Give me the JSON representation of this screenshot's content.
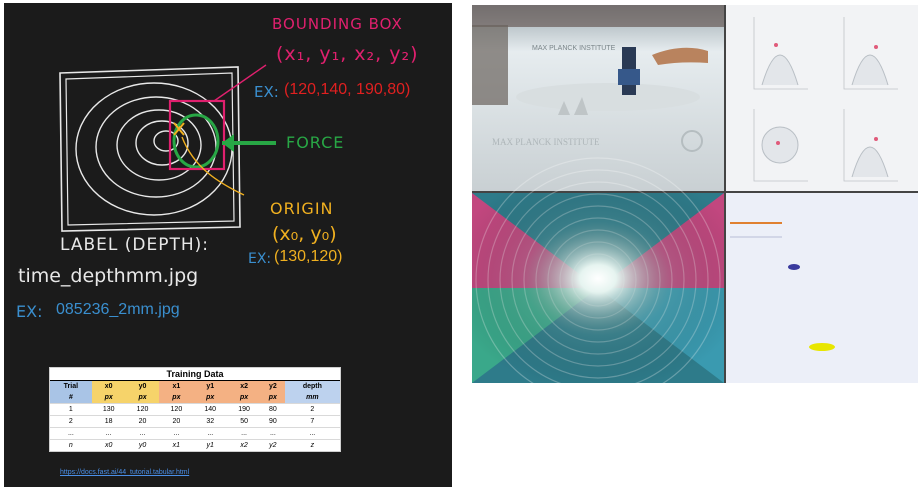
{
  "annotations": {
    "bbox_title": "BOUNDING BOX",
    "bbox_tuple": "(x₁, y₁, x₂, y₂)",
    "bbox_example_prefix": "EX:",
    "bbox_example_value": "(120,140, 190,80)",
    "force_label": "FORCE",
    "origin_title": "ORIGIN",
    "origin_tuple": "(x₀, y₀)",
    "origin_example_prefix": "EX:",
    "origin_example_value": "(130,120)",
    "label_heading": "LABEL (DEPTH):",
    "label_format": "time_depthmm.jpg",
    "file_example_prefix": "EX:",
    "file_example_value": "085236_2mm.jpg",
    "url": "https://docs.fast.ai/44_tutorial.tabular.html"
  },
  "training_table": {
    "title": "Training Data",
    "headers": [
      "Trial",
      "x0",
      "y0",
      "x1",
      "y1",
      "x2",
      "y2",
      "depth"
    ],
    "units": [
      "#",
      "px",
      "px",
      "px",
      "px",
      "px",
      "px",
      "mm"
    ],
    "rows": [
      [
        "1",
        "130",
        "120",
        "120",
        "140",
        "190",
        "80",
        "2"
      ],
      [
        "2",
        "18",
        "20",
        "20",
        "32",
        "50",
        "90",
        "7"
      ],
      [
        "...",
        "...",
        "...",
        "...",
        "...",
        "...",
        "...",
        "..."
      ],
      [
        "n",
        "x0",
        "y0",
        "x1",
        "y1",
        "x2",
        "y2",
        "z"
      ]
    ]
  },
  "video_panels": {
    "camera_sign_text": "MAX PLANCK INSTITUTE",
    "overlay_text": "MAX PLANCK INSTITUTE"
  },
  "colors": {
    "board": "#1b1b1b",
    "bbox": "#e0206e",
    "force": "#28a745",
    "origin": "#f0b020",
    "example_blue": "#3a8fcf"
  }
}
